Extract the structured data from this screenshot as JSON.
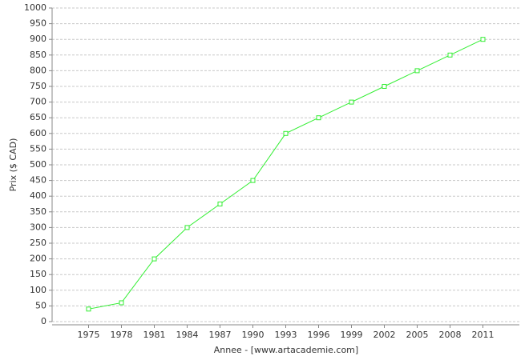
{
  "chart_data": {
    "type": "line",
    "x_label": "Annee - [www.artacademie.com]",
    "y_label": "Prix ($ CAD)",
    "categories": [
      "1975",
      "1978",
      "1981",
      "1984",
      "1987",
      "1990",
      "1993",
      "1996",
      "1999",
      "2002",
      "2005",
      "2008",
      "2011"
    ],
    "values": [
      40,
      60,
      200,
      300,
      375,
      450,
      600,
      650,
      700,
      750,
      800,
      850,
      900
    ],
    "color": "#33ee33",
    "ylim": [
      0,
      1000
    ],
    "yticks": [
      0,
      50,
      100,
      150,
      200,
      250,
      300,
      350,
      400,
      450,
      500,
      550,
      600,
      650,
      700,
      750,
      800,
      850,
      900,
      950,
      1000
    ],
    "grid": true
  }
}
